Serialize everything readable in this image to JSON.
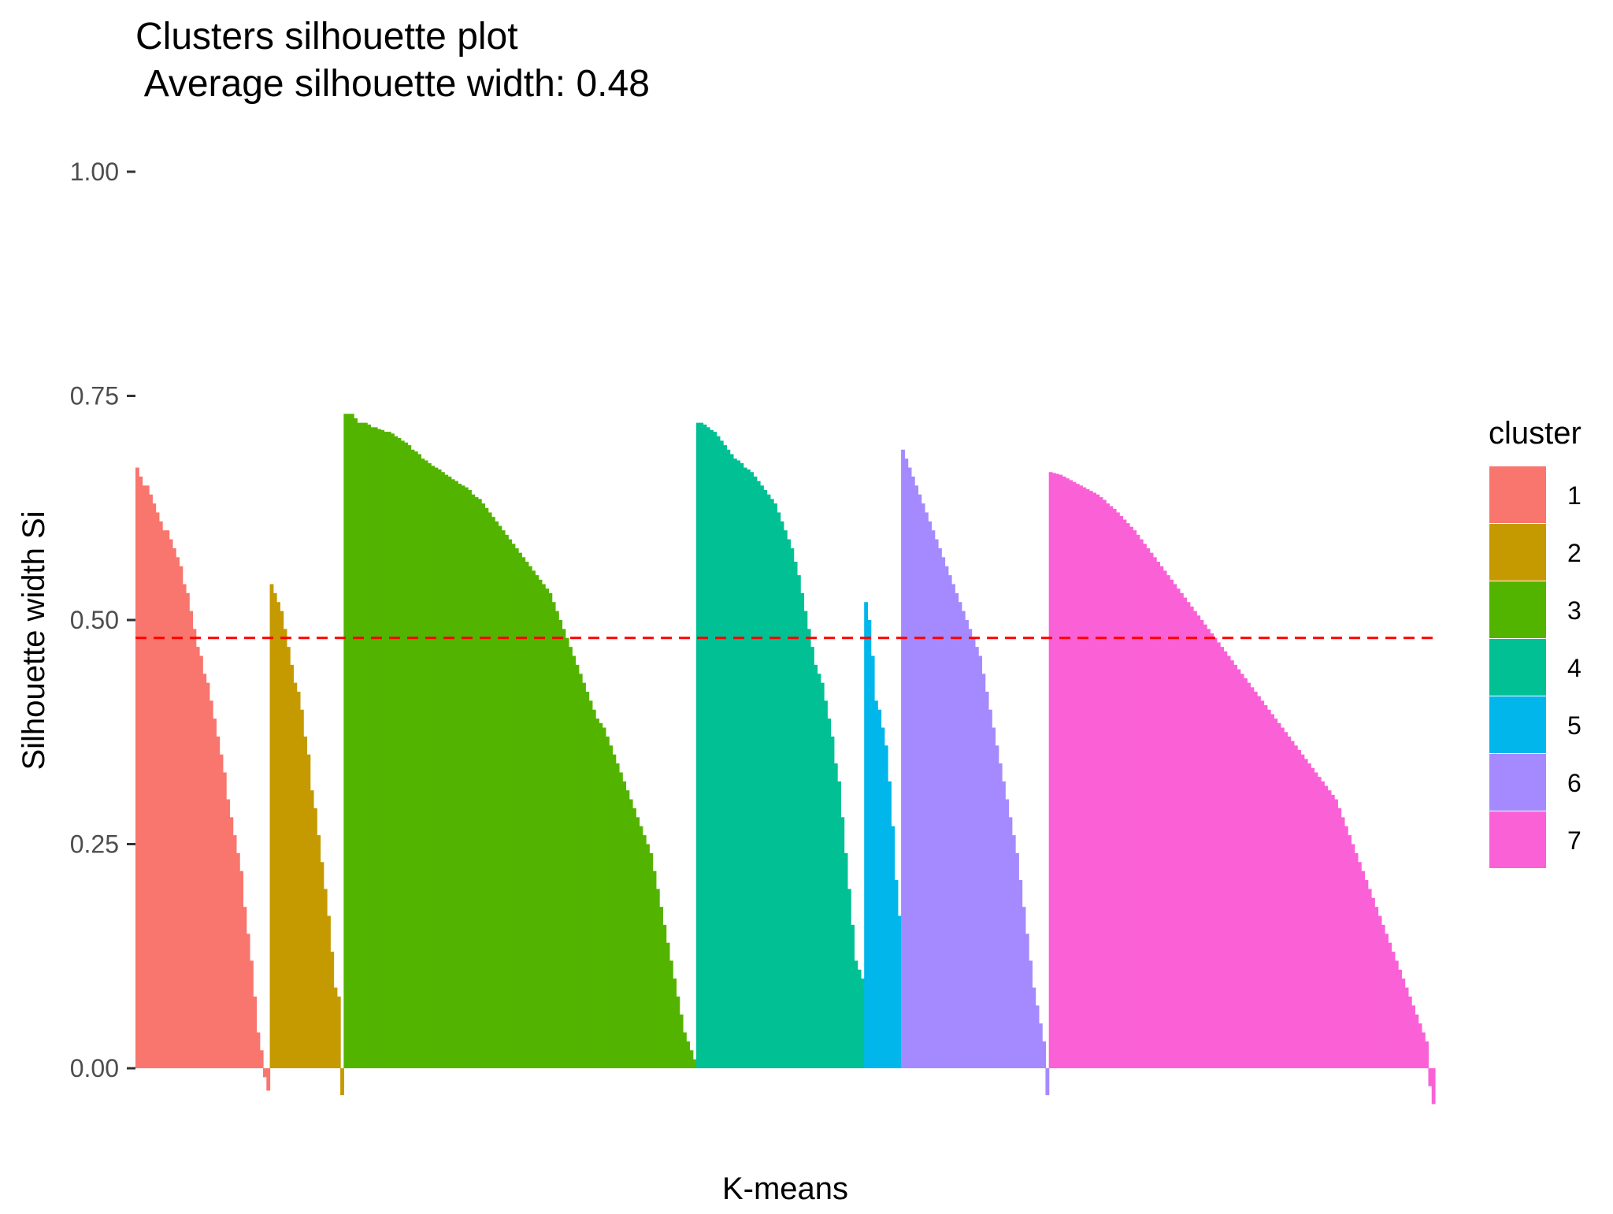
{
  "chart_data": {
    "type": "bar",
    "title": "Clusters silhouette plot",
    "subtitle": " Average silhouette width: 0.48",
    "xlabel": "K-means",
    "ylabel": "Silhouette width Si",
    "ylim": [
      -0.06,
      1.0
    ],
    "yticks": [
      0.0,
      0.25,
      0.5,
      0.75,
      1.0
    ],
    "ytick_labels": [
      "0.00",
      "0.25",
      "0.50",
      "0.75",
      "1.00"
    ],
    "average_line": {
      "value": 0.48,
      "color": "#ff0000",
      "style": "dashed"
    },
    "grid": false,
    "legend": {
      "title": "cluster",
      "position": "right",
      "entries": [
        "1",
        "2",
        "3",
        "4",
        "5",
        "6",
        "7"
      ]
    },
    "clusters": [
      {
        "name": "1",
        "color": "#F8766D",
        "values": [
          0.67,
          0.66,
          0.65,
          0.65,
          0.64,
          0.63,
          0.62,
          0.61,
          0.6,
          0.6,
          0.59,
          0.58,
          0.57,
          0.56,
          0.54,
          0.53,
          0.51,
          0.49,
          0.47,
          0.46,
          0.44,
          0.43,
          0.41,
          0.39,
          0.37,
          0.35,
          0.33,
          0.3,
          0.28,
          0.26,
          0.24,
          0.22,
          0.18,
          0.15,
          0.12,
          0.08,
          0.04,
          0.02,
          -0.01,
          -0.025
        ]
      },
      {
        "name": "2",
        "color": "#C49A00",
        "values": [
          0.54,
          0.53,
          0.52,
          0.51,
          0.49,
          0.47,
          0.45,
          0.43,
          0.42,
          0.4,
          0.37,
          0.35,
          0.31,
          0.29,
          0.26,
          0.23,
          0.2,
          0.17,
          0.13,
          0.09,
          0.08,
          -0.03
        ]
      },
      {
        "name": "3",
        "color": "#53B400",
        "values": [
          0.73,
          0.73,
          0.73,
          0.725,
          0.72,
          0.72,
          0.72,
          0.718,
          0.715,
          0.715,
          0.713,
          0.712,
          0.71,
          0.71,
          0.708,
          0.705,
          0.703,
          0.7,
          0.698,
          0.695,
          0.69,
          0.688,
          0.685,
          0.68,
          0.678,
          0.675,
          0.672,
          0.67,
          0.668,
          0.665,
          0.662,
          0.66,
          0.657,
          0.655,
          0.652,
          0.65,
          0.648,
          0.645,
          0.64,
          0.637,
          0.635,
          0.63,
          0.625,
          0.62,
          0.615,
          0.61,
          0.605,
          0.6,
          0.595,
          0.59,
          0.585,
          0.58,
          0.575,
          0.57,
          0.565,
          0.56,
          0.555,
          0.55,
          0.545,
          0.54,
          0.535,
          0.53,
          0.52,
          0.51,
          0.5,
          0.49,
          0.48,
          0.47,
          0.46,
          0.45,
          0.44,
          0.43,
          0.42,
          0.41,
          0.4,
          0.39,
          0.385,
          0.38,
          0.37,
          0.36,
          0.35,
          0.34,
          0.33,
          0.32,
          0.31,
          0.3,
          0.29,
          0.28,
          0.27,
          0.26,
          0.25,
          0.24,
          0.22,
          0.2,
          0.18,
          0.16,
          0.14,
          0.12,
          0.1,
          0.08,
          0.06,
          0.04,
          0.03,
          0.02,
          0.01
        ]
      },
      {
        "name": "4",
        "color": "#00C094",
        "values": [
          0.72,
          0.72,
          0.718,
          0.715,
          0.712,
          0.71,
          0.705,
          0.7,
          0.695,
          0.69,
          0.685,
          0.68,
          0.678,
          0.675,
          0.67,
          0.668,
          0.665,
          0.66,
          0.655,
          0.65,
          0.645,
          0.64,
          0.635,
          0.63,
          0.62,
          0.61,
          0.6,
          0.59,
          0.58,
          0.565,
          0.55,
          0.53,
          0.51,
          0.49,
          0.47,
          0.45,
          0.44,
          0.43,
          0.41,
          0.39,
          0.37,
          0.34,
          0.32,
          0.28,
          0.24,
          0.2,
          0.16,
          0.12,
          0.11,
          0.1
        ]
      },
      {
        "name": "5",
        "color": "#00B6EB",
        "values": [
          0.52,
          0.5,
          0.46,
          0.41,
          0.4,
          0.38,
          0.36,
          0.32,
          0.27,
          0.21,
          0.17
        ]
      },
      {
        "name": "6",
        "color": "#A58AFF",
        "values": [
          0.69,
          0.68,
          0.67,
          0.66,
          0.65,
          0.64,
          0.63,
          0.62,
          0.61,
          0.6,
          0.59,
          0.58,
          0.57,
          0.56,
          0.55,
          0.54,
          0.53,
          0.52,
          0.51,
          0.5,
          0.49,
          0.48,
          0.47,
          0.46,
          0.44,
          0.42,
          0.4,
          0.38,
          0.36,
          0.34,
          0.32,
          0.3,
          0.28,
          0.26,
          0.24,
          0.21,
          0.18,
          0.15,
          0.12,
          0.09,
          0.07,
          0.05,
          0.03,
          -0.03
        ]
      },
      {
        "name": "7",
        "color": "#FB61D7",
        "values": [
          0.665,
          0.664,
          0.663,
          0.662,
          0.66,
          0.658,
          0.656,
          0.654,
          0.652,
          0.65,
          0.648,
          0.646,
          0.644,
          0.642,
          0.64,
          0.637,
          0.634,
          0.63,
          0.627,
          0.624,
          0.62,
          0.616,
          0.612,
          0.608,
          0.604,
          0.6,
          0.595,
          0.59,
          0.585,
          0.58,
          0.575,
          0.57,
          0.565,
          0.56,
          0.555,
          0.55,
          0.545,
          0.54,
          0.535,
          0.53,
          0.525,
          0.52,
          0.515,
          0.51,
          0.505,
          0.5,
          0.495,
          0.49,
          0.485,
          0.48,
          0.475,
          0.47,
          0.465,
          0.46,
          0.455,
          0.45,
          0.445,
          0.44,
          0.435,
          0.43,
          0.425,
          0.42,
          0.415,
          0.41,
          0.405,
          0.4,
          0.395,
          0.39,
          0.385,
          0.38,
          0.375,
          0.37,
          0.365,
          0.36,
          0.355,
          0.35,
          0.345,
          0.34,
          0.335,
          0.33,
          0.325,
          0.32,
          0.315,
          0.31,
          0.305,
          0.3,
          0.29,
          0.28,
          0.27,
          0.26,
          0.25,
          0.24,
          0.23,
          0.22,
          0.21,
          0.2,
          0.19,
          0.18,
          0.17,
          0.16,
          0.15,
          0.14,
          0.13,
          0.12,
          0.11,
          0.1,
          0.09,
          0.08,
          0.07,
          0.06,
          0.05,
          0.04,
          0.03,
          -0.02,
          -0.04
        ]
      }
    ]
  }
}
